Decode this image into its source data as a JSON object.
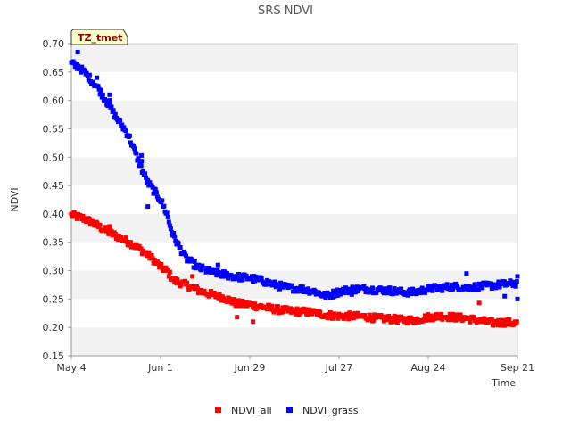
{
  "chart_data": {
    "type": "scatter",
    "title": "SRS NDVI",
    "xlabel": "Time",
    "ylabel": "NDVI",
    "badge": "TZ_tmet",
    "ylim": [
      0.15,
      0.7
    ],
    "xlim": [
      0,
      140
    ],
    "yticks": [
      0.15,
      0.2,
      0.25,
      0.3,
      0.35,
      0.4,
      0.45,
      0.5,
      0.55,
      0.6,
      0.65,
      0.7
    ],
    "ytick_labels": [
      "0.15",
      "0.20",
      "0.25",
      "0.30",
      "0.35",
      "0.40",
      "0.45",
      "0.50",
      "0.55",
      "0.60",
      "0.65",
      "0.70"
    ],
    "xticks": [
      0,
      28,
      56,
      84,
      112,
      140
    ],
    "xtick_labels": [
      "May 4",
      "Jun 1",
      "Jun 29",
      "Jul 27",
      "Aug 24",
      "Sep 21"
    ],
    "x_unit": "days since May 4",
    "legend_position": "bottom-center",
    "series": [
      {
        "name": "NDVI_all",
        "color": "#ff0000",
        "x": [
          0,
          4,
          8,
          12,
          16,
          20,
          24,
          26,
          28,
          30,
          32,
          36,
          40,
          44,
          48,
          52,
          56,
          60,
          64,
          68,
          72,
          76,
          80,
          84,
          88,
          92,
          96,
          100,
          104,
          108,
          112,
          116,
          120,
          124,
          128,
          132,
          136,
          140
        ],
        "values": [
          0.398,
          0.392,
          0.38,
          0.367,
          0.356,
          0.344,
          0.328,
          0.318,
          0.306,
          0.3,
          0.283,
          0.275,
          0.265,
          0.258,
          0.252,
          0.242,
          0.24,
          0.236,
          0.232,
          0.229,
          0.228,
          0.226,
          0.222,
          0.22,
          0.22,
          0.219,
          0.216,
          0.215,
          0.213,
          0.213,
          0.218,
          0.22,
          0.218,
          0.216,
          0.212,
          0.208,
          0.209,
          0.207
        ],
        "outliers": [
          [
            12,
            0.378
          ],
          [
            52,
            0.218
          ],
          [
            57,
            0.21
          ],
          [
            38,
            0.29
          ],
          [
            128,
            0.243
          ]
        ]
      },
      {
        "name": "NDVI_grass",
        "color": "#0000ff",
        "x": [
          0,
          2,
          4,
          8,
          10,
          12,
          14,
          16,
          18,
          20,
          22,
          24,
          26,
          28,
          30,
          31,
          32,
          34,
          36,
          38,
          40,
          44,
          48,
          52,
          56,
          60,
          64,
          68,
          72,
          76,
          80,
          84,
          88,
          92,
          96,
          100,
          104,
          108,
          112,
          116,
          120,
          124,
          128,
          132,
          136,
          140
        ],
        "values": [
          0.665,
          0.66,
          0.65,
          0.625,
          0.608,
          0.59,
          0.57,
          0.555,
          0.538,
          0.508,
          0.48,
          0.455,
          0.44,
          0.425,
          0.4,
          0.378,
          0.362,
          0.34,
          0.322,
          0.313,
          0.305,
          0.298,
          0.293,
          0.289,
          0.287,
          0.282,
          0.275,
          0.27,
          0.268,
          0.264,
          0.255,
          0.263,
          0.267,
          0.268,
          0.266,
          0.265,
          0.262,
          0.262,
          0.268,
          0.27,
          0.272,
          0.27,
          0.272,
          0.274,
          0.276,
          0.278
        ],
        "outliers": [
          [
            2,
            0.685
          ],
          [
            8,
            0.64
          ],
          [
            12,
            0.61
          ],
          [
            12,
            0.6
          ],
          [
            22,
            0.503
          ],
          [
            22,
            0.493
          ],
          [
            24,
            0.413
          ],
          [
            46,
            0.31
          ],
          [
            88,
            0.258
          ],
          [
            124,
            0.295
          ],
          [
            140,
            0.29
          ],
          [
            136,
            0.255
          ],
          [
            140,
            0.25
          ]
        ]
      }
    ]
  }
}
